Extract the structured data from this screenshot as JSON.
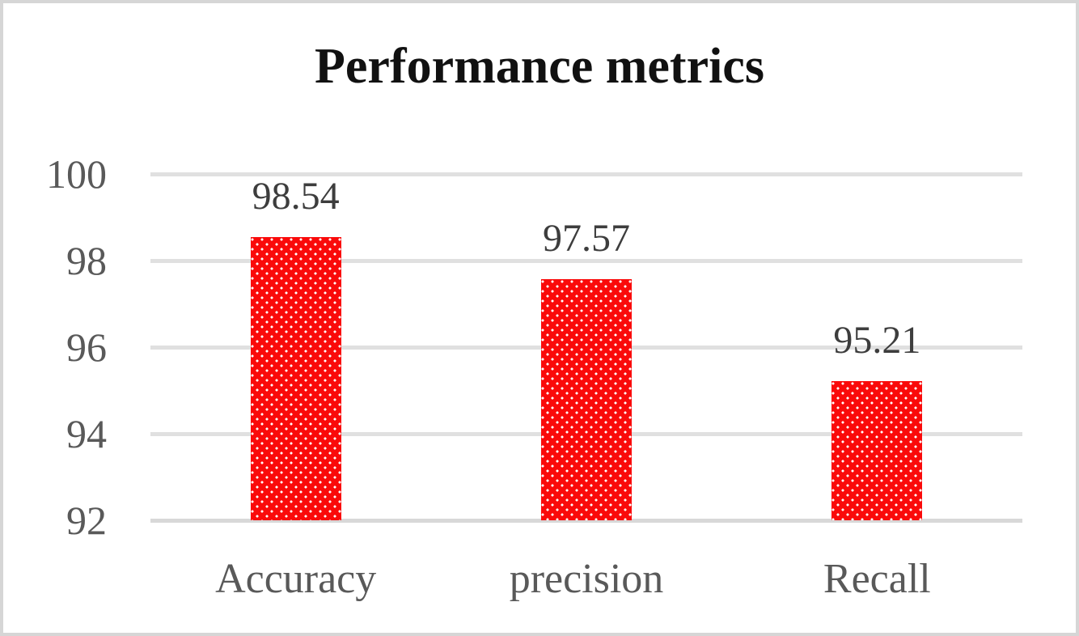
{
  "page": {
    "background_color": "#ffffff",
    "frame_border_color": "#d6d6d6"
  },
  "chart_data": {
    "type": "bar",
    "title": "Performance metrics",
    "categories": [
      "Accuracy",
      "precision",
      "Recall"
    ],
    "values": [
      98.54,
      97.57,
      95.21
    ],
    "value_labels": [
      "98.54",
      "97.57",
      "95.21"
    ],
    "ylim": [
      92,
      100
    ],
    "yticks": [
      100,
      98,
      96,
      94,
      92
    ],
    "xlabel": "",
    "ylabel": "",
    "grid": true,
    "legend_position": "none",
    "bar_color": "#fa0a0a",
    "bar_pattern": "white-dots",
    "gridline_color": "#e0e0e0",
    "baseline_color": "#d8d8d8",
    "axis_label_color": "#595959",
    "data_label_color": "#3d3d3d",
    "title_color": "#111111"
  }
}
